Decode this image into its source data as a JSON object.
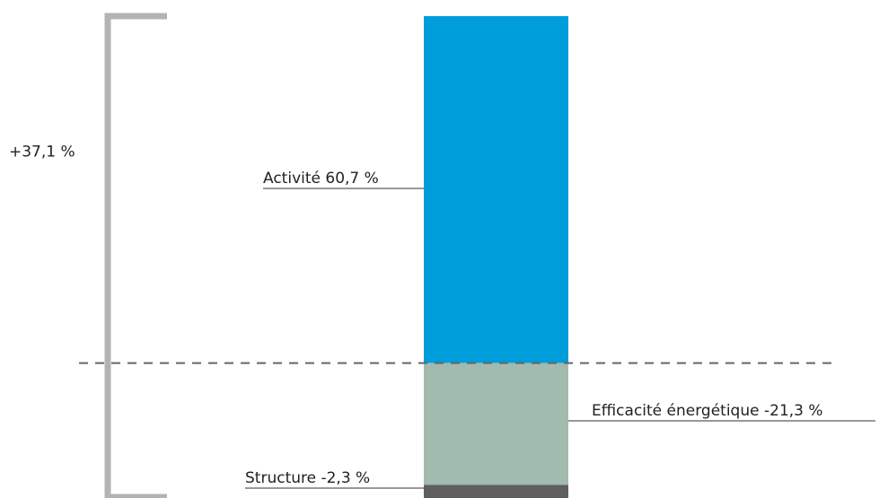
{
  "chart_data": {
    "type": "bar",
    "title": "",
    "xlabel": "",
    "ylabel": "",
    "ylim": [
      -23.6,
      60.7
    ],
    "total": {
      "label": "+37,1 %",
      "value": 37.1
    },
    "series": [
      {
        "name": "Activité",
        "label": "Activité 60,7 %",
        "value": 60.7,
        "color": "#009ddb"
      },
      {
        "name": "Efficacité énergétique",
        "label": "Efficacité énergétique -21,3 %",
        "value": -21.3,
        "color": "#a1bbae"
      },
      {
        "name": "Structure",
        "label": "Structure -2,3 %",
        "value": -2.3,
        "color": "#5f5f5f"
      }
    ],
    "colors": {
      "bracket": "#b3b3b3",
      "baseline": "#666666",
      "leader": "#333333"
    }
  }
}
